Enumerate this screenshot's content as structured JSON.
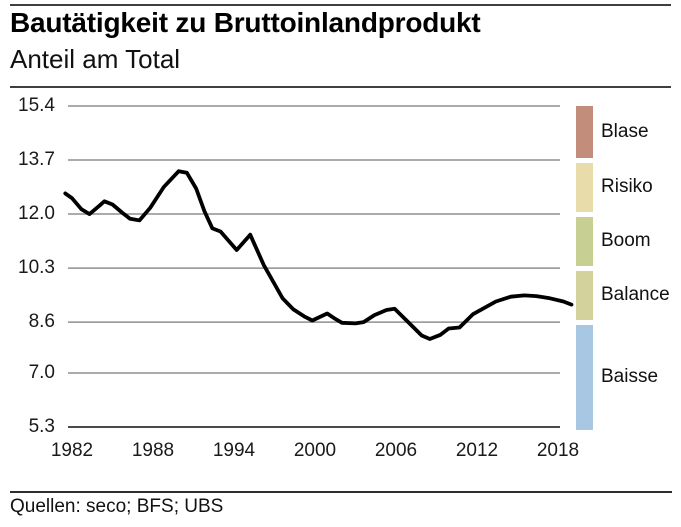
{
  "header": {
    "title": "Bautätigkeit zu Bruttoinlandprodukt",
    "subtitle": "Anteil am Total"
  },
  "footer": {
    "source": "Quellen: seco; BFS; UBS"
  },
  "colors": {
    "line": "#000000",
    "gridline": "#8f8f8f",
    "axis_bottom": "#4a4a4a",
    "rule": "#3f3f3f",
    "blase": "#c38d7c",
    "risiko": "#e9dcab",
    "boom": "#c8cf92",
    "balance": "#d3d29c",
    "baisse": "#a7c7e2"
  },
  "chart_data": {
    "type": "line",
    "title": "Bautätigkeit zu Bruttoinlandprodukt",
    "subtitle": "Anteil am Total",
    "xlabel": "",
    "ylabel": "",
    "grid": "horizontal",
    "legend_position": "right",
    "ylim": [
      5.3,
      15.4
    ],
    "xlim": [
      1981.5,
      2019.5
    ],
    "y_tick_labels": [
      "15.4",
      "13.7",
      "12.0",
      "10.3",
      "8.6",
      "7.0",
      "5.3"
    ],
    "x_tick_labels": [
      "1982",
      "1988",
      "1994",
      "2000",
      "2006",
      "2012",
      "2018"
    ],
    "series": [
      {
        "name": "Bautätigkeit zu Bruttoinlandprodukt (Anteil am Total, %)",
        "color": "#000000",
        "points": [
          [
            1981.5,
            12.65
          ],
          [
            1982.0,
            12.5
          ],
          [
            1982.7,
            12.15
          ],
          [
            1983.3,
            12.0
          ],
          [
            1984.0,
            12.25
          ],
          [
            1984.4,
            12.4
          ],
          [
            1985.0,
            12.3
          ],
          [
            1985.7,
            12.05
          ],
          [
            1986.3,
            11.85
          ],
          [
            1987.0,
            11.8
          ],
          [
            1987.8,
            12.2
          ],
          [
            1988.8,
            12.85
          ],
          [
            1989.9,
            13.35
          ],
          [
            1990.5,
            13.3
          ],
          [
            1991.2,
            12.8
          ],
          [
            1991.8,
            12.1
          ],
          [
            1992.4,
            11.55
          ],
          [
            1993.0,
            11.45
          ],
          [
            1994.2,
            10.87
          ],
          [
            1995.2,
            11.35
          ],
          [
            1996.2,
            10.4
          ],
          [
            1997.0,
            9.8
          ],
          [
            1997.6,
            9.35
          ],
          [
            1998.4,
            9.0
          ],
          [
            1999.2,
            8.78
          ],
          [
            1999.8,
            8.65
          ],
          [
            2000.9,
            8.87
          ],
          [
            2001.5,
            8.7
          ],
          [
            2002.0,
            8.58
          ],
          [
            2003.0,
            8.56
          ],
          [
            2003.6,
            8.6
          ],
          [
            2004.4,
            8.82
          ],
          [
            2005.3,
            8.98
          ],
          [
            2005.9,
            9.02
          ],
          [
            2006.9,
            8.6
          ],
          [
            2007.9,
            8.18
          ],
          [
            2008.5,
            8.07
          ],
          [
            2009.3,
            8.2
          ],
          [
            2009.9,
            8.4
          ],
          [
            2010.7,
            8.43
          ],
          [
            2011.7,
            8.85
          ],
          [
            2013.4,
            9.25
          ],
          [
            2014.5,
            9.4
          ],
          [
            2015.5,
            9.44
          ],
          [
            2016.4,
            9.42
          ],
          [
            2017.4,
            9.35
          ],
          [
            2018.4,
            9.25
          ],
          [
            2019.0,
            9.15
          ]
        ]
      }
    ],
    "legend_bands": [
      {
        "label": "Blase",
        "range": [
          13.7,
          15.4
        ],
        "color": "#c38d7c"
      },
      {
        "label": "Risiko",
        "range": [
          12.0,
          13.7
        ],
        "color": "#e9dcab"
      },
      {
        "label": "Boom",
        "range": [
          10.3,
          12.0
        ],
        "color": "#c8cf92"
      },
      {
        "label": "Balance",
        "range": [
          8.6,
          10.3
        ],
        "color": "#d3d29c"
      },
      {
        "label": "Baisse",
        "range": [
          5.3,
          8.6
        ],
        "color": "#a7c7e2"
      }
    ]
  }
}
